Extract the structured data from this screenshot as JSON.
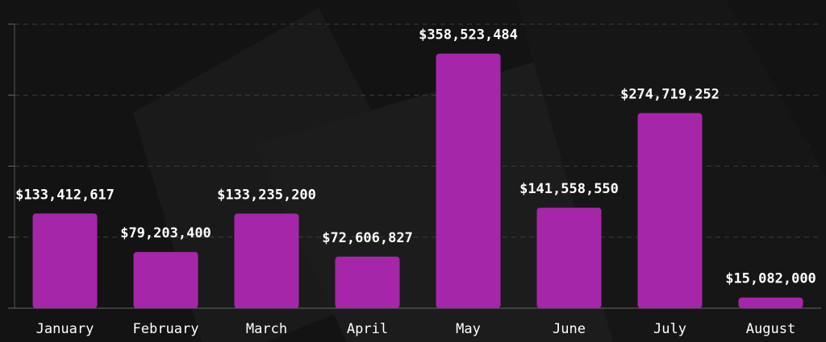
{
  "chart_data": {
    "type": "bar",
    "categories": [
      "January",
      "February",
      "March",
      "April",
      "May",
      "June",
      "July",
      "August"
    ],
    "values": [
      133412617,
      79203400,
      133235200,
      72606827,
      358523484,
      141558550,
      274719252,
      15082000
    ],
    "value_labels": [
      "$133,412,617",
      "$79,203,400",
      "$133,235,200",
      "$72,606,827",
      "$358,523,484",
      "$141,558,550",
      "$274,719,252",
      "$15,082,000"
    ],
    "color": "#a526a9",
    "ylim": [
      0,
      400000000
    ],
    "yticks": [
      0,
      100000000,
      200000000,
      300000000,
      400000000
    ],
    "grid": true
  }
}
